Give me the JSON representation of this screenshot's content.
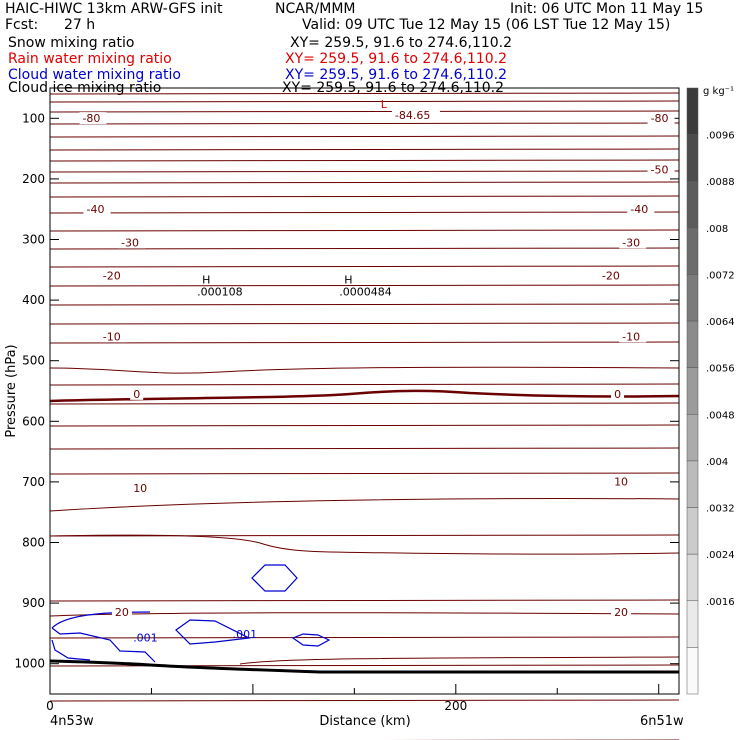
{
  "header": {
    "model": "HAIC-HIWC 13km ARW-GFS init",
    "org": "NCAR/MMM",
    "init": "Init: 06 UTC Mon 11 May 15",
    "fcst_label": "Fcst:",
    "fcst_value": "27 h",
    "valid": "Valid: 09 UTC Tue 12 May 15 (06 LST Tue 12 May 15)",
    "fields": [
      {
        "name": "Snow mixing ratio",
        "xy": "XY= 259.5, 91.6 to 274.6,110.2",
        "color": "#000000"
      },
      {
        "name": "Rain water mixing ratio",
        "xy": "XY= 259.5, 91.6 to 274.6,110.2",
        "color": "#e00000"
      },
      {
        "name": "Cloud water mixing ratio",
        "xy": "XY= 259.5, 91.6 to 274.6,110.2",
        "color": "#0000d0"
      },
      {
        "name": "Cloud ice mixing ratio",
        "xy": "XY= 259.5, 91.6 to 274.6,110.2",
        "color": "#000000"
      }
    ]
  },
  "chart_data": {
    "type": "contour",
    "xlabel": "Distance (km)",
    "ylabel": "Pressure (hPa)",
    "x_ticks": [
      0,
      200
    ],
    "xlim": [
      0,
      310
    ],
    "y_ticks": [
      100,
      200,
      300,
      400,
      500,
      600,
      700,
      800,
      900,
      1000
    ],
    "ylim": [
      50,
      1050
    ],
    "x_endpoints": {
      "left": "4n53w",
      "right": "6n51w"
    },
    "temperature_labels": [
      {
        "text": "-80",
        "x": 16,
        "p": 103
      },
      {
        "text": "-84.65",
        "x": 170,
        "p": 98
      },
      {
        "text": "-80",
        "x": 296,
        "p": 103
      },
      {
        "text": "-50",
        "x": 296,
        "p": 188
      },
      {
        "text": "-40",
        "x": 18,
        "p": 253
      },
      {
        "text": "-40",
        "x": 286,
        "p": 253
      },
      {
        "text": "-30",
        "x": 35,
        "p": 308
      },
      {
        "text": "-30",
        "x": 282,
        "p": 308
      },
      {
        "text": "-20",
        "x": 26,
        "p": 363
      },
      {
        "text": "-20",
        "x": 272,
        "p": 363
      },
      {
        "text": "-10",
        "x": 26,
        "p": 463
      },
      {
        "text": "-10",
        "x": 282,
        "p": 463
      },
      {
        "text": "0",
        "x": 41,
        "p": 558
      },
      {
        "text": "0",
        "x": 278,
        "p": 558
      },
      {
        "text": "10",
        "x": 41,
        "p": 713
      },
      {
        "text": "10",
        "x": 278,
        "p": 703
      },
      {
        "text": "20",
        "x": 32,
        "p": 918
      },
      {
        "text": "20",
        "x": 278,
        "p": 918
      }
    ],
    "extrema": [
      {
        "marker": "L",
        "value": "",
        "x": 163,
        "p": 83,
        "color": "#e00000"
      },
      {
        "marker": "H",
        "value": ".000108",
        "x": 75,
        "p": 373,
        "color": "#000000"
      },
      {
        "marker": "H",
        "value": ".0000484",
        "x": 145,
        "p": 373,
        "color": "#000000"
      }
    ],
    "cloud_water_labels": [
      {
        "text": ".001",
        "x": 41,
        "p": 963
      },
      {
        "text": ".001",
        "x": 90,
        "p": 958
      }
    ],
    "colorbar": {
      "unit_label": "g kg⁻¹",
      "ticks": [
        ".0096",
        ".0088",
        ".008",
        ".0072",
        ".0064",
        ".0056",
        ".0048",
        ".004",
        ".0032",
        ".0024",
        ".0016"
      ]
    }
  }
}
